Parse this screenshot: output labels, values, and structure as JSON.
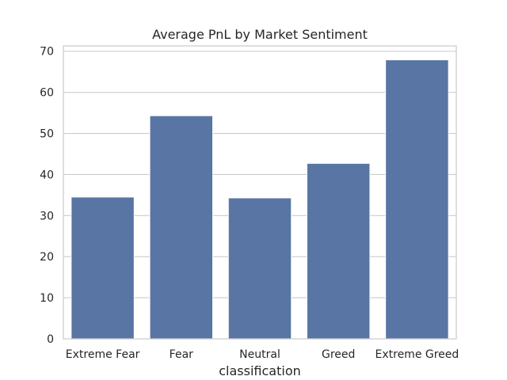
{
  "chart_data": {
    "type": "bar",
    "title": "Average PnL by Market Sentiment",
    "xlabel": "classification",
    "ylabel": "",
    "categories": [
      "Extreme Fear",
      "Fear",
      "Neutral",
      "Greed",
      "Extreme Greed"
    ],
    "values": [
      34.5,
      54.3,
      34.3,
      42.7,
      67.9
    ],
    "ylim": [
      0,
      71.3
    ],
    "yticks": [
      0,
      10,
      20,
      30,
      40,
      50,
      60,
      70
    ],
    "grid": true,
    "grid_axis": "y",
    "bar_color": "#5975a4"
  }
}
